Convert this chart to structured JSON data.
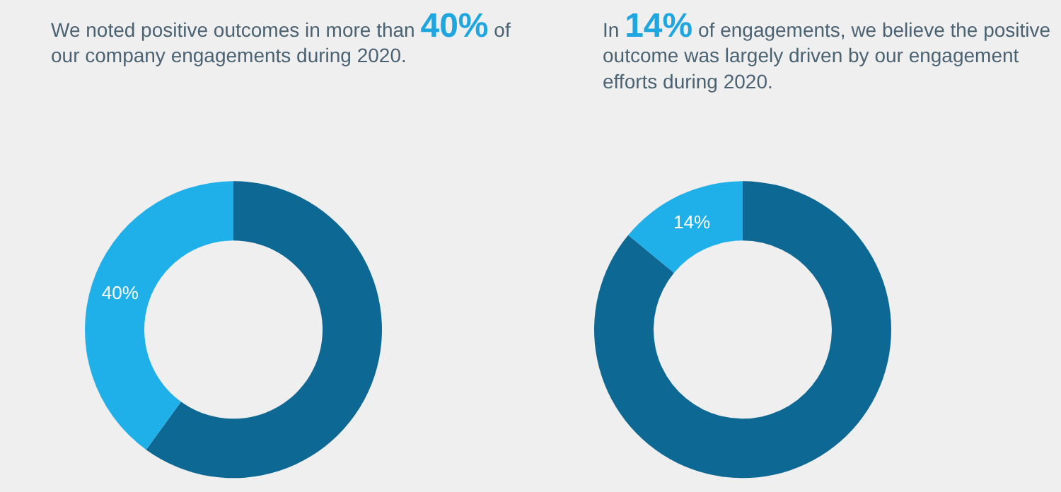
{
  "chart_data": [
    {
      "type": "donut",
      "title": "We noted positive outcomes in more than 40% of our company engagements during 2020.",
      "categories": [
        null,
        null
      ],
      "values": [
        60,
        40
      ],
      "colors": [
        "#0e6894",
        "#1fb0ea"
      ],
      "value_labels": [
        null,
        "40%"
      ]
    },
    {
      "type": "donut",
      "title": "In 14% of engagements, we believe the positive outcome was largely driven by our engagement efforts during 2020.",
      "categories": [
        null,
        null
      ],
      "values": [
        86,
        14
      ],
      "colors": [
        "#0e6894",
        "#1fb0ea"
      ],
      "value_labels": [
        null,
        "14%"
      ]
    }
  ]
}
